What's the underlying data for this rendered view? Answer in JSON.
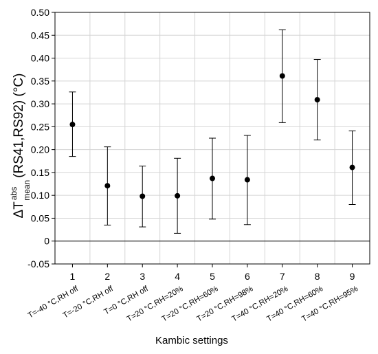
{
  "chart_data": {
    "type": "scatter",
    "xlabel": "Kambic settings",
    "ylabel": {
      "main": "ΔT",
      "sup": "abs",
      "sub": "mean",
      "rest": "(RS41,RS92) (°C)"
    },
    "ylim": [
      -0.05,
      0.5
    ],
    "yticks": [
      "-0.05",
      "0",
      "0.05",
      "0.10",
      "0.15",
      "0.20",
      "0.25",
      "0.30",
      "0.35",
      "0.40",
      "0.45",
      "0.50"
    ],
    "xlim": [
      0.5,
      9.5
    ],
    "grid": true,
    "categories": [
      "1",
      "2",
      "3",
      "4",
      "5",
      "6",
      "7",
      "8",
      "9"
    ],
    "setting_labels": [
      "T=-40 °C,RH off",
      "T=-20 °C,RH off",
      "T=0 °C,RH off",
      "T=20 °C,RH=20%",
      "T=20 °C,RH=60%",
      "T=20 °C,RH=98%",
      "T=40 °C,RH=20%",
      "T=40 °C,RH=60%",
      "T=40 °C,RH=95%"
    ],
    "points": [
      {
        "x": 1,
        "y": 0.255,
        "lo": 0.185,
        "hi": 0.326
      },
      {
        "x": 2,
        "y": 0.121,
        "lo": 0.035,
        "hi": 0.206
      },
      {
        "x": 3,
        "y": 0.098,
        "lo": 0.031,
        "hi": 0.164
      },
      {
        "x": 4,
        "y": 0.099,
        "lo": 0.017,
        "hi": 0.181
      },
      {
        "x": 5,
        "y": 0.137,
        "lo": 0.048,
        "hi": 0.225
      },
      {
        "x": 6,
        "y": 0.134,
        "lo": 0.036,
        "hi": 0.231
      },
      {
        "x": 7,
        "y": 0.361,
        "lo": 0.259,
        "hi": 0.462
      },
      {
        "x": 8,
        "y": 0.309,
        "lo": 0.221,
        "hi": 0.397
      },
      {
        "x": 9,
        "y": 0.161,
        "lo": 0.08,
        "hi": 0.241
      }
    ],
    "zero_line": 0
  }
}
